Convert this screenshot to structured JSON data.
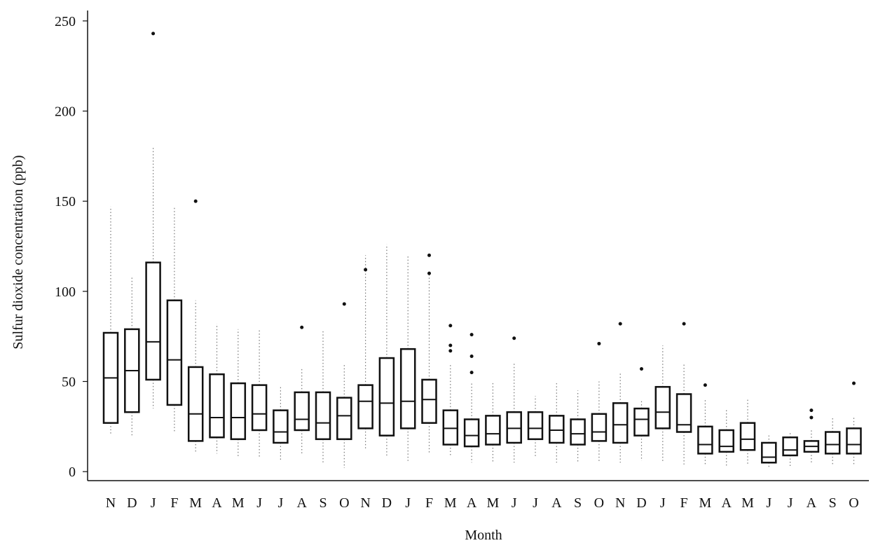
{
  "chart_data": {
    "type": "box",
    "x_label": "Month",
    "y_label": "Sulfur dioxide concentration (ppb)",
    "categories": [
      "N",
      "D",
      "J",
      "F",
      "M",
      "A",
      "M",
      "J",
      "J",
      "A",
      "S",
      "O",
      "N",
      "D",
      "J",
      "F",
      "M",
      "A",
      "M",
      "J",
      "J",
      "A",
      "S",
      "O",
      "N",
      "D",
      "J",
      "F",
      "M",
      "A",
      "M",
      "J",
      "J",
      "A",
      "S",
      "O"
    ],
    "whisker_low": [
      20,
      20,
      35,
      22,
      10,
      10,
      8,
      8,
      6,
      10,
      5,
      2,
      12,
      8,
      6,
      10,
      8,
      5,
      5,
      5,
      8,
      5,
      5,
      5,
      5,
      6,
      5,
      4,
      3,
      3,
      4,
      2,
      3,
      5,
      4,
      4
    ],
    "q1": [
      27,
      33,
      51,
      37,
      17,
      19,
      18,
      23,
      16,
      23,
      18,
      18,
      24,
      20,
      24,
      27,
      15,
      14,
      15,
      16,
      18,
      16,
      15,
      17,
      16,
      20,
      24,
      22,
      10,
      11,
      12,
      5,
      9,
      11,
      10,
      10
    ],
    "median": [
      52,
      56,
      72,
      62,
      32,
      30,
      30,
      32,
      22,
      29,
      27,
      31,
      39,
      38,
      39,
      40,
      24,
      20,
      21,
      24,
      24,
      23,
      21,
      22,
      26,
      29,
      33,
      26,
      15,
      14,
      18,
      8,
      12,
      14,
      15,
      15
    ],
    "q3": [
      77,
      79,
      116,
      95,
      58,
      54,
      49,
      48,
      34,
      44,
      44,
      41,
      48,
      63,
      68,
      51,
      34,
      29,
      31,
      33,
      33,
      31,
      29,
      32,
      38,
      35,
      47,
      43,
      25,
      23,
      27,
      16,
      19,
      17,
      22,
      24
    ],
    "whisker_high": [
      147,
      108,
      180,
      147,
      95,
      82,
      79,
      79,
      47,
      57,
      79,
      60,
      120,
      126,
      120,
      110,
      60,
      50,
      50,
      60,
      42,
      49,
      45,
      50,
      55,
      40,
      70,
      60,
      40,
      35,
      40,
      20,
      22,
      24,
      30,
      30
    ],
    "outliers": [
      [],
      [],
      [
        243
      ],
      [],
      [
        150
      ],
      [],
      [],
      [],
      [],
      [
        80
      ],
      [],
      [
        93
      ],
      [
        112
      ],
      [],
      [],
      [
        110,
        120
      ],
      [
        67,
        70,
        81
      ],
      [
        55,
        64,
        76
      ],
      [],
      [
        74
      ],
      [],
      [],
      [],
      [
        71
      ],
      [
        82
      ],
      [
        57
      ],
      [],
      [
        82
      ],
      [
        48
      ],
      [],
      [],
      [],
      [],
      [
        30,
        34
      ],
      [],
      [
        49
      ]
    ],
    "ylim": [
      -5,
      255
    ],
    "yticks": [
      0,
      50,
      100,
      150,
      200,
      250
    ],
    "box_color": "#111111"
  }
}
